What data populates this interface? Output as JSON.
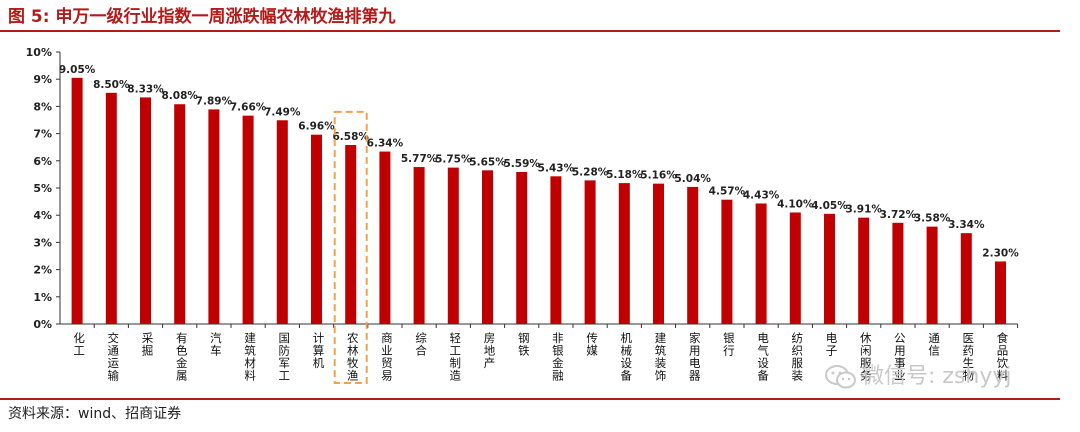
{
  "figure": {
    "title": "图 5:  申万一级行业指数一周涨跌幅农林牧渔排第九",
    "source": "资料来源：wind、招商证券",
    "watermark": "微信号: zshyyj"
  },
  "colors": {
    "bar": "#c00000",
    "highlight_box": "#f5a04b",
    "rule": "#b31b1b"
  },
  "chart_data": {
    "type": "bar",
    "title": "申万一级行业指数一周涨跌幅农林牧渔排第九",
    "ylim": [
      0,
      10
    ],
    "yticks": [
      "0%",
      "1%",
      "2%",
      "3%",
      "4%",
      "5%",
      "6%",
      "7%",
      "8%",
      "9%",
      "10%"
    ],
    "grid": false,
    "categories": [
      "化工",
      "交通运输",
      "采掘",
      "有色金属",
      "汽车",
      "建筑材料",
      "国防军工",
      "计算机",
      "农林牧渔",
      "商业贸易",
      "综合",
      "轻工制造",
      "房地产",
      "钢铁",
      "非银金融",
      "传媒",
      "机械设备",
      "建筑装饰",
      "家用电器",
      "银行",
      "电气设备",
      "纺织服装",
      "电子",
      "休闲服务",
      "公用事业",
      "通信",
      "医药生物",
      "食品饮料"
    ],
    "values": [
      9.05,
      8.5,
      8.33,
      8.08,
      7.89,
      7.66,
      7.49,
      6.96,
      6.58,
      6.34,
      5.77,
      5.75,
      5.65,
      5.59,
      5.43,
      5.28,
      5.18,
      5.16,
      5.04,
      4.57,
      4.43,
      4.1,
      4.05,
      3.91,
      3.72,
      3.58,
      3.34,
      2.3
    ],
    "labels": [
      "9.05%",
      "8.50%",
      "8.33%",
      "8.08%",
      "7.89%",
      "7.66%",
      "7.49%",
      "6.96%",
      "6.58%",
      "6.34%",
      "5.77%",
      "5.75%",
      "5.65%",
      "5.59%",
      "5.43%",
      "5.28%",
      "5.18%",
      "5.16%",
      "5.04%",
      "4.57%",
      "4.43%",
      "4.10%",
      "4.05%",
      "3.91%",
      "3.72%",
      "3.58%",
      "3.34%",
      "2.30%"
    ],
    "highlight_category": "农林牧渔"
  }
}
